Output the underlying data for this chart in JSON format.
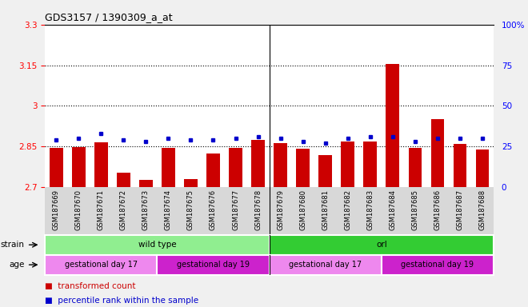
{
  "title": "GDS3157 / 1390309_a_at",
  "samples": [
    "GSM187669",
    "GSM187670",
    "GSM187671",
    "GSM187672",
    "GSM187673",
    "GSM187674",
    "GSM187675",
    "GSM187676",
    "GSM187677",
    "GSM187678",
    "GSM187679",
    "GSM187680",
    "GSM187681",
    "GSM187682",
    "GSM187683",
    "GSM187684",
    "GSM187685",
    "GSM187686",
    "GSM187687",
    "GSM187688"
  ],
  "transformed_count": [
    2.845,
    2.848,
    2.865,
    2.755,
    2.726,
    2.845,
    2.73,
    2.825,
    2.845,
    2.875,
    2.862,
    2.842,
    2.818,
    2.868,
    2.868,
    3.155,
    2.845,
    2.952,
    2.86,
    2.838
  ],
  "percentile_rank": [
    29,
    30,
    33,
    29,
    28,
    30,
    29,
    29,
    30,
    31,
    30,
    28,
    27,
    30,
    31,
    31,
    28,
    30,
    30,
    30
  ],
  "ylim_left": [
    2.7,
    3.3
  ],
  "ylim_right": [
    0,
    100
  ],
  "yticks_left": [
    2.7,
    2.85,
    3.0,
    3.15,
    3.3
  ],
  "yticks_right": [
    0,
    25,
    50,
    75,
    100
  ],
  "ytick_labels_left": [
    "2.7",
    "2.85",
    "3",
    "3.15",
    "3.3"
  ],
  "ytick_labels_right": [
    "0",
    "25",
    "50",
    "75",
    "100%"
  ],
  "hlines": [
    2.85,
    3.0,
    3.15
  ],
  "bar_color": "#cc0000",
  "dot_color": "#0000cc",
  "strain_groups": [
    {
      "label": "wild type",
      "start": 0,
      "end": 10,
      "color": "#90ee90"
    },
    {
      "label": "orl",
      "start": 10,
      "end": 20,
      "color": "#33cc33"
    }
  ],
  "age_groups": [
    {
      "label": "gestational day 17",
      "start": 0,
      "end": 5,
      "color": "#ee88ee"
    },
    {
      "label": "gestational day 19",
      "start": 5,
      "end": 10,
      "color": "#cc22cc"
    },
    {
      "label": "gestational day 17",
      "start": 10,
      "end": 15,
      "color": "#ee88ee"
    },
    {
      "label": "gestational day 19",
      "start": 15,
      "end": 20,
      "color": "#cc22cc"
    }
  ],
  "legend_items": [
    {
      "label": "transformed count",
      "color": "#cc0000"
    },
    {
      "label": "percentile rank within the sample",
      "color": "#0000cc"
    }
  ],
  "fig_bg": "#f0f0f0",
  "plot_bg": "#ffffff",
  "xticklabel_area_color": "#d8d8d8"
}
